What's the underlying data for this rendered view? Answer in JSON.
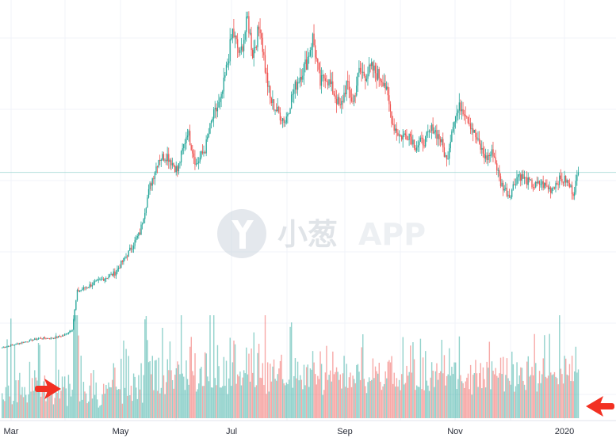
{
  "chart_data": {
    "type": "candlestick",
    "x_ticks": [
      "Mar",
      "May",
      "Jul",
      "Sep",
      "Nov",
      "2020"
    ],
    "grid": true,
    "colors": {
      "up": "#26a69a",
      "down": "#ef5350",
      "background": "#ffffff",
      "grid": "#f0f3fa"
    },
    "ylim": [
      0,
      100
    ],
    "last_price_line": 72,
    "price_anchors": [
      [
        0,
        8
      ],
      [
        10,
        9
      ],
      [
        20,
        10
      ],
      [
        30,
        11
      ],
      [
        40,
        11
      ],
      [
        50,
        12
      ],
      [
        56,
        14
      ],
      [
        60,
        26
      ],
      [
        70,
        28
      ],
      [
        80,
        30
      ],
      [
        90,
        32
      ],
      [
        100,
        38
      ],
      [
        110,
        45
      ],
      [
        118,
        60
      ],
      [
        125,
        69
      ],
      [
        132,
        70
      ],
      [
        140,
        65
      ],
      [
        148,
        78
      ],
      [
        155,
        67
      ],
      [
        162,
        72
      ],
      [
        168,
        82
      ],
      [
        175,
        88
      ],
      [
        180,
        100
      ],
      [
        184,
        110
      ],
      [
        190,
        102
      ],
      [
        196,
        114
      ],
      [
        200,
        103
      ],
      [
        206,
        112
      ],
      [
        210,
        98
      ],
      [
        214,
        88
      ],
      [
        220,
        84
      ],
      [
        226,
        81
      ],
      [
        232,
        90
      ],
      [
        237,
        95
      ],
      [
        243,
        100
      ],
      [
        248,
        108
      ],
      [
        254,
        93
      ],
      [
        258,
        96
      ],
      [
        265,
        90
      ],
      [
        270,
        85
      ],
      [
        275,
        93
      ],
      [
        280,
        87
      ],
      [
        285,
        97
      ],
      [
        290,
        96
      ],
      [
        295,
        98
      ],
      [
        305,
        94
      ],
      [
        312,
        80
      ],
      [
        318,
        76
      ],
      [
        325,
        77
      ],
      [
        330,
        73
      ],
      [
        338,
        75
      ],
      [
        344,
        79
      ],
      [
        350,
        75
      ],
      [
        355,
        68
      ],
      [
        360,
        81
      ],
      [
        366,
        86
      ],
      [
        370,
        84
      ],
      [
        374,
        80
      ],
      [
        380,
        74
      ],
      [
        386,
        69
      ],
      [
        392,
        71
      ],
      [
        398,
        61
      ],
      [
        405,
        57
      ],
      [
        412,
        64
      ],
      [
        418,
        62
      ],
      [
        425,
        60
      ],
      [
        430,
        61
      ],
      [
        438,
        59
      ],
      [
        444,
        62
      ],
      [
        450,
        62
      ],
      [
        456,
        58
      ],
      [
        460,
        64
      ]
    ],
    "volume_range": [
      0,
      100
    ]
  },
  "annotations": {
    "left_arrow": {
      "direction": "right",
      "color": "#f23022"
    },
    "right_arrow": {
      "direction": "left",
      "color": "#f23022"
    }
  },
  "watermark": {
    "icon": "leaf-logo-icon",
    "brand_text": "小葱",
    "suffix_text": "APP"
  }
}
